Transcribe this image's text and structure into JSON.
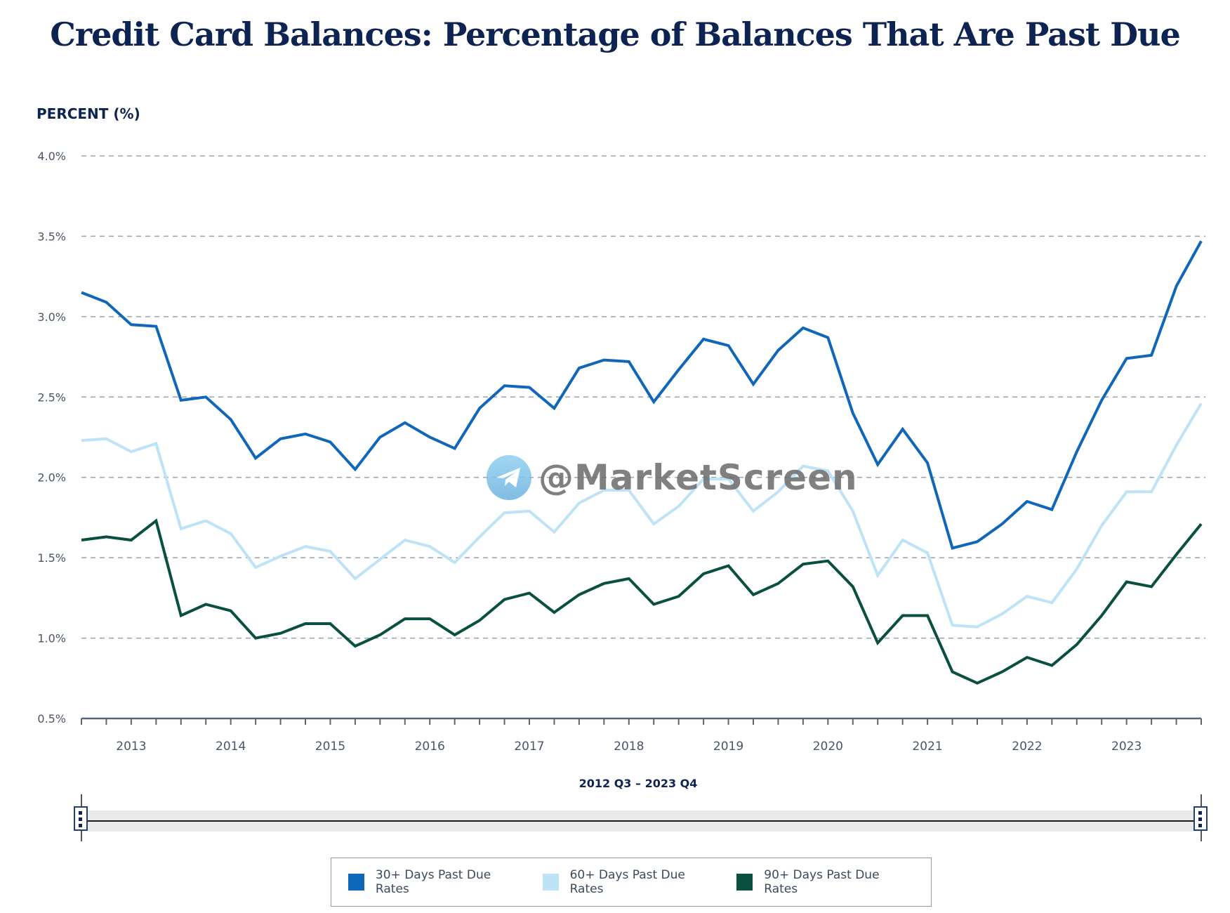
{
  "title": "Credit Card Balances: Percentage of Balances That Are Past Due",
  "watermark": "@MarketScreen",
  "chart_data": {
    "type": "line",
    "title": "Credit Card Balances: Percentage of Balances That Are Past Due",
    "ylabel": "PERCENT (%)",
    "xlabel": "2012 Q3 – 2023 Q4",
    "ylim": [
      0.5,
      4.0
    ],
    "yticks": [
      "4.0%",
      "3.5%",
      "3.0%",
      "2.5%",
      "2.0%",
      "1.5%",
      "1.0%",
      "0.5%"
    ],
    "ytick_values": [
      4.0,
      3.5,
      3.0,
      2.5,
      2.0,
      1.5,
      1.0,
      0.5
    ],
    "grid": true,
    "legend_position": "bottom",
    "x_start": "2012 Q3",
    "x_end": "2023 Q4",
    "xtick_labels": [
      "2013",
      "2014",
      "2015",
      "2016",
      "2017",
      "2018",
      "2019",
      "2020",
      "2021",
      "2022",
      "2023"
    ],
    "xtick_label_quarter_index": [
      2,
      6,
      10,
      14,
      18,
      22,
      26,
      30,
      34,
      38,
      42
    ],
    "series": [
      {
        "name": "30+ Days Past Due Rates",
        "color": "#1066b8",
        "values": [
          3.15,
          3.09,
          2.95,
          2.94,
          2.48,
          2.5,
          2.36,
          2.12,
          2.24,
          2.27,
          2.22,
          2.05,
          2.25,
          2.34,
          2.25,
          2.18,
          2.43,
          2.57,
          2.56,
          2.43,
          2.68,
          2.73,
          2.72,
          2.47,
          2.67,
          2.86,
          2.82,
          2.58,
          2.79,
          2.93,
          2.87,
          2.4,
          2.08,
          2.3,
          2.09,
          1.56,
          1.6,
          1.71,
          1.85,
          1.8,
          2.16,
          2.48,
          2.74,
          2.76,
          3.19,
          3.47
        ]
      },
      {
        "name": "60+ Days Past Due Rates",
        "color": "#bee3f7",
        "values": [
          2.23,
          2.24,
          2.16,
          2.21,
          1.68,
          1.73,
          1.65,
          1.44,
          1.51,
          1.57,
          1.54,
          1.37,
          1.49,
          1.61,
          1.57,
          1.47,
          1.63,
          1.78,
          1.79,
          1.66,
          1.84,
          1.92,
          1.92,
          1.71,
          1.82,
          1.99,
          1.99,
          1.79,
          1.91,
          2.07,
          2.04,
          1.79,
          1.39,
          1.61,
          1.53,
          1.08,
          1.07,
          1.15,
          1.26,
          1.22,
          1.43,
          1.7,
          1.91,
          1.91,
          2.2,
          2.46
        ]
      },
      {
        "name": "90+ Days Past Due Rates",
        "color": "#0a5040",
        "values": [
          1.61,
          1.63,
          1.61,
          1.73,
          1.14,
          1.21,
          1.17,
          1.0,
          1.03,
          1.09,
          1.09,
          0.95,
          1.02,
          1.12,
          1.12,
          1.02,
          1.11,
          1.24,
          1.28,
          1.16,
          1.27,
          1.34,
          1.37,
          1.21,
          1.26,
          1.4,
          1.45,
          1.27,
          1.34,
          1.46,
          1.48,
          1.32,
          0.97,
          1.14,
          1.14,
          0.79,
          0.72,
          0.79,
          0.88,
          0.83,
          0.96,
          1.14,
          1.35,
          1.32,
          1.52,
          1.71
        ]
      }
    ]
  },
  "colors": {
    "title": "#0d2352",
    "grid": "#9aa3b5",
    "axis": "#5a6576",
    "tick_text": "#4a5568"
  }
}
